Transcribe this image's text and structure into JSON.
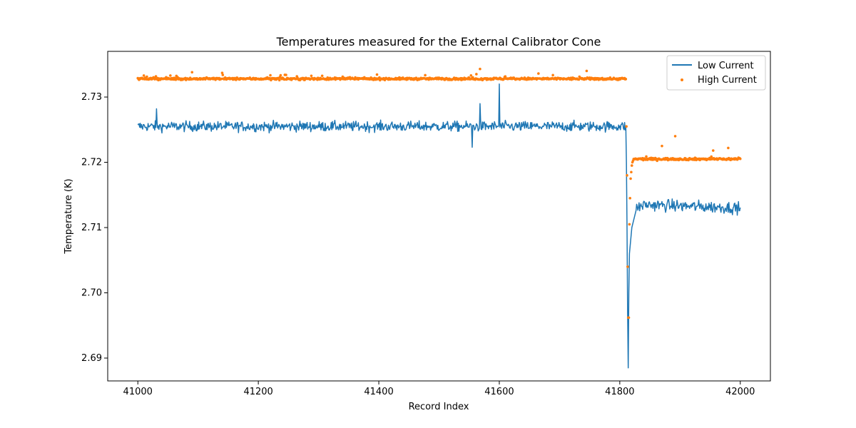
{
  "chart_data": {
    "type": "line",
    "title": "Temperatures measured for the External Calibrator Cone",
    "xlabel": "Record Index",
    "ylabel": "Temperature (K)",
    "xlim": [
      40950,
      42050
    ],
    "ylim": [
      2.6865,
      2.737
    ],
    "xticks": [
      41000,
      41200,
      41400,
      41600,
      41800,
      42000
    ],
    "yticks": [
      2.69,
      2.7,
      2.71,
      2.72,
      2.73
    ],
    "ytick_labels": [
      "2.69",
      "2.70",
      "2.71",
      "2.72",
      "2.73"
    ],
    "legend_position": "top-right",
    "series": [
      {
        "name": "Low Current",
        "style": "line",
        "color": "#1f77b4",
        "x_start": 41000,
        "x_end": 42000,
        "anchors": [
          [
            41000,
            2.7255
          ],
          [
            41500,
            2.7255
          ],
          [
            41600,
            2.7255
          ],
          [
            41800,
            2.7255
          ],
          [
            41810,
            2.7255
          ],
          [
            41811,
            2.72
          ],
          [
            41812,
            2.71
          ],
          [
            41813,
            2.697
          ],
          [
            41814,
            2.6885
          ],
          [
            41815,
            2.7
          ],
          [
            41816,
            2.706
          ],
          [
            41818,
            2.708
          ],
          [
            41820,
            2.71
          ],
          [
            41824,
            2.7115
          ],
          [
            41828,
            2.713
          ],
          [
            41840,
            2.7135
          ],
          [
            42000,
            2.713
          ]
        ],
        "spikes": [
          [
            41031,
            2.7282
          ],
          [
            41600,
            2.732
          ],
          [
            41568,
            2.729
          ],
          [
            41555,
            2.7223
          ]
        ]
      },
      {
        "name": "High Current",
        "style": "scatter",
        "color": "#ff7f0e",
        "x_start": 41000,
        "x_end": 42000,
        "anchors": [
          [
            41000,
            2.7328
          ],
          [
            41810,
            2.7328
          ],
          [
            41811,
            2.7255
          ],
          [
            41812,
            2.718
          ],
          [
            41813,
            2.704
          ],
          [
            41814,
            2.6962
          ],
          [
            41815,
            2.6962
          ],
          [
            41816,
            2.7105
          ],
          [
            41817,
            2.7145
          ],
          [
            41818,
            2.7175
          ],
          [
            41819,
            2.7185
          ],
          [
            41820,
            2.7195
          ],
          [
            41821,
            2.72
          ],
          [
            41823,
            2.7205
          ],
          [
            41826,
            2.7205
          ],
          [
            42000,
            2.7205
          ]
        ],
        "spikes": [
          [
            41568,
            2.7343
          ],
          [
            41090,
            2.7338
          ],
          [
            41140,
            2.7337
          ],
          [
            41665,
            2.7336
          ],
          [
            41745,
            2.734
          ],
          [
            41892,
            2.724
          ],
          [
            41870,
            2.7225
          ],
          [
            41980,
            2.7222
          ],
          [
            41955,
            2.7218
          ]
        ]
      }
    ]
  }
}
